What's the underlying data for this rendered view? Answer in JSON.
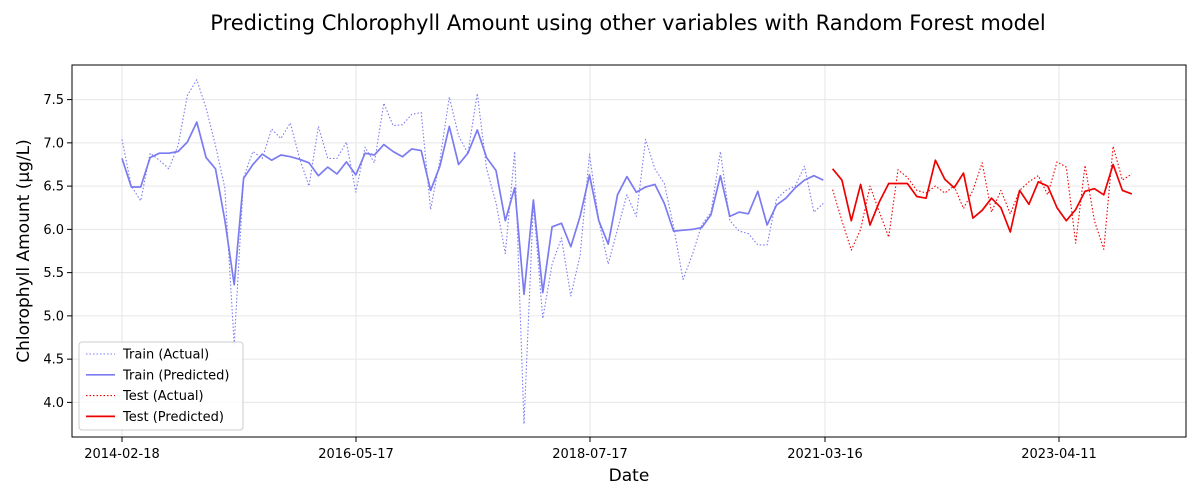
{
  "chart_data": {
    "type": "line",
    "title": "Predicting Chlorophyll Amount using other variables with Random Forest model",
    "xlabel": "Date",
    "ylabel": "Chlorophyll Amount (µg/L)",
    "ylim": [
      3.6,
      7.9
    ],
    "grid": true,
    "legend_position": "lower-left",
    "x_tick_labels": [
      "2014-02-18",
      "2016-05-17",
      "2018-07-17",
      "2021-03-16",
      "2023-04-11"
    ],
    "y_tick_labels": [
      "4.0",
      "4.5",
      "5.0",
      "5.5",
      "6.0",
      "6.5",
      "7.0",
      "7.5"
    ],
    "y_ticks": [
      4.0,
      4.5,
      5.0,
      5.5,
      6.0,
      6.5,
      7.0,
      7.5
    ],
    "colors": {
      "train": "#7b7bf2",
      "test": "#ee0000"
    },
    "series": [
      {
        "name": "Train (Actual)",
        "style": "dotted",
        "color": "#7b7bf2",
        "values": [
          7.04,
          6.5,
          6.33,
          6.88,
          6.8,
          6.7,
          6.97,
          7.55,
          7.73,
          7.4,
          6.97,
          6.48,
          4.67,
          6.6,
          6.9,
          6.82,
          7.16,
          7.05,
          7.23,
          6.82,
          6.5,
          7.19,
          6.82,
          6.82,
          7.01,
          6.43,
          6.95,
          6.77,
          7.46,
          7.2,
          7.21,
          7.33,
          7.35,
          6.23,
          6.8,
          7.53,
          7.08,
          6.88,
          7.57,
          6.7,
          6.31,
          5.72,
          6.9,
          3.75,
          6.3,
          4.97,
          5.6,
          5.9,
          5.23,
          5.7,
          6.87,
          6.1,
          5.6,
          6.0,
          6.4,
          6.15,
          7.04,
          6.7,
          6.53,
          6.03,
          5.42,
          5.71,
          6.05,
          6.2,
          6.9,
          6.1,
          5.98,
          5.95,
          5.82,
          5.82,
          6.35,
          6.45,
          6.5,
          6.73,
          6.2,
          6.3
        ]
      },
      {
        "name": "Train (Predicted)",
        "style": "solid",
        "color": "#7b7bf2",
        "values": [
          6.82,
          6.49,
          6.49,
          6.83,
          6.88,
          6.88,
          6.9,
          7.01,
          7.24,
          6.83,
          6.7,
          6.11,
          5.36,
          6.59,
          6.75,
          6.87,
          6.8,
          6.86,
          6.84,
          6.81,
          6.77,
          6.62,
          6.72,
          6.64,
          6.78,
          6.63,
          6.88,
          6.86,
          6.98,
          6.9,
          6.84,
          6.93,
          6.91,
          6.45,
          6.73,
          7.19,
          6.75,
          6.88,
          7.15,
          6.83,
          6.68,
          6.1,
          6.48,
          5.25,
          6.34,
          5.27,
          6.03,
          6.07,
          5.8,
          6.15,
          6.63,
          6.1,
          5.83,
          6.4,
          6.61,
          6.43,
          6.49,
          6.52,
          6.3,
          5.98,
          5.99,
          6.0,
          6.02,
          6.17,
          6.62,
          6.15,
          6.2,
          6.18,
          6.44,
          6.05,
          6.28,
          6.36,
          6.48,
          6.57,
          6.62,
          6.57
        ]
      },
      {
        "name": "Test (Actual)",
        "style": "dotted",
        "color": "#ee0000",
        "values": [
          6.46,
          6.1,
          5.76,
          6.0,
          6.5,
          6.2,
          5.91,
          6.69,
          6.6,
          6.45,
          6.42,
          6.5,
          6.42,
          6.5,
          6.24,
          6.45,
          6.77,
          6.2,
          6.45,
          6.18,
          6.45,
          6.55,
          6.62,
          6.4,
          6.78,
          6.72,
          5.84,
          6.74,
          6.1,
          5.77,
          6.96,
          6.57,
          6.64
        ]
      },
      {
        "name": "Test (Predicted)",
        "style": "solid",
        "color": "#ee0000",
        "values": [
          6.7,
          6.57,
          6.1,
          6.52,
          6.05,
          6.32,
          6.53,
          6.53,
          6.53,
          6.38,
          6.36,
          6.8,
          6.58,
          6.48,
          6.65,
          6.13,
          6.22,
          6.36,
          6.25,
          5.97,
          6.45,
          6.29,
          6.55,
          6.5,
          6.25,
          6.1,
          6.23,
          6.44,
          6.47,
          6.4,
          6.75,
          6.45,
          6.41
        ]
      }
    ]
  }
}
